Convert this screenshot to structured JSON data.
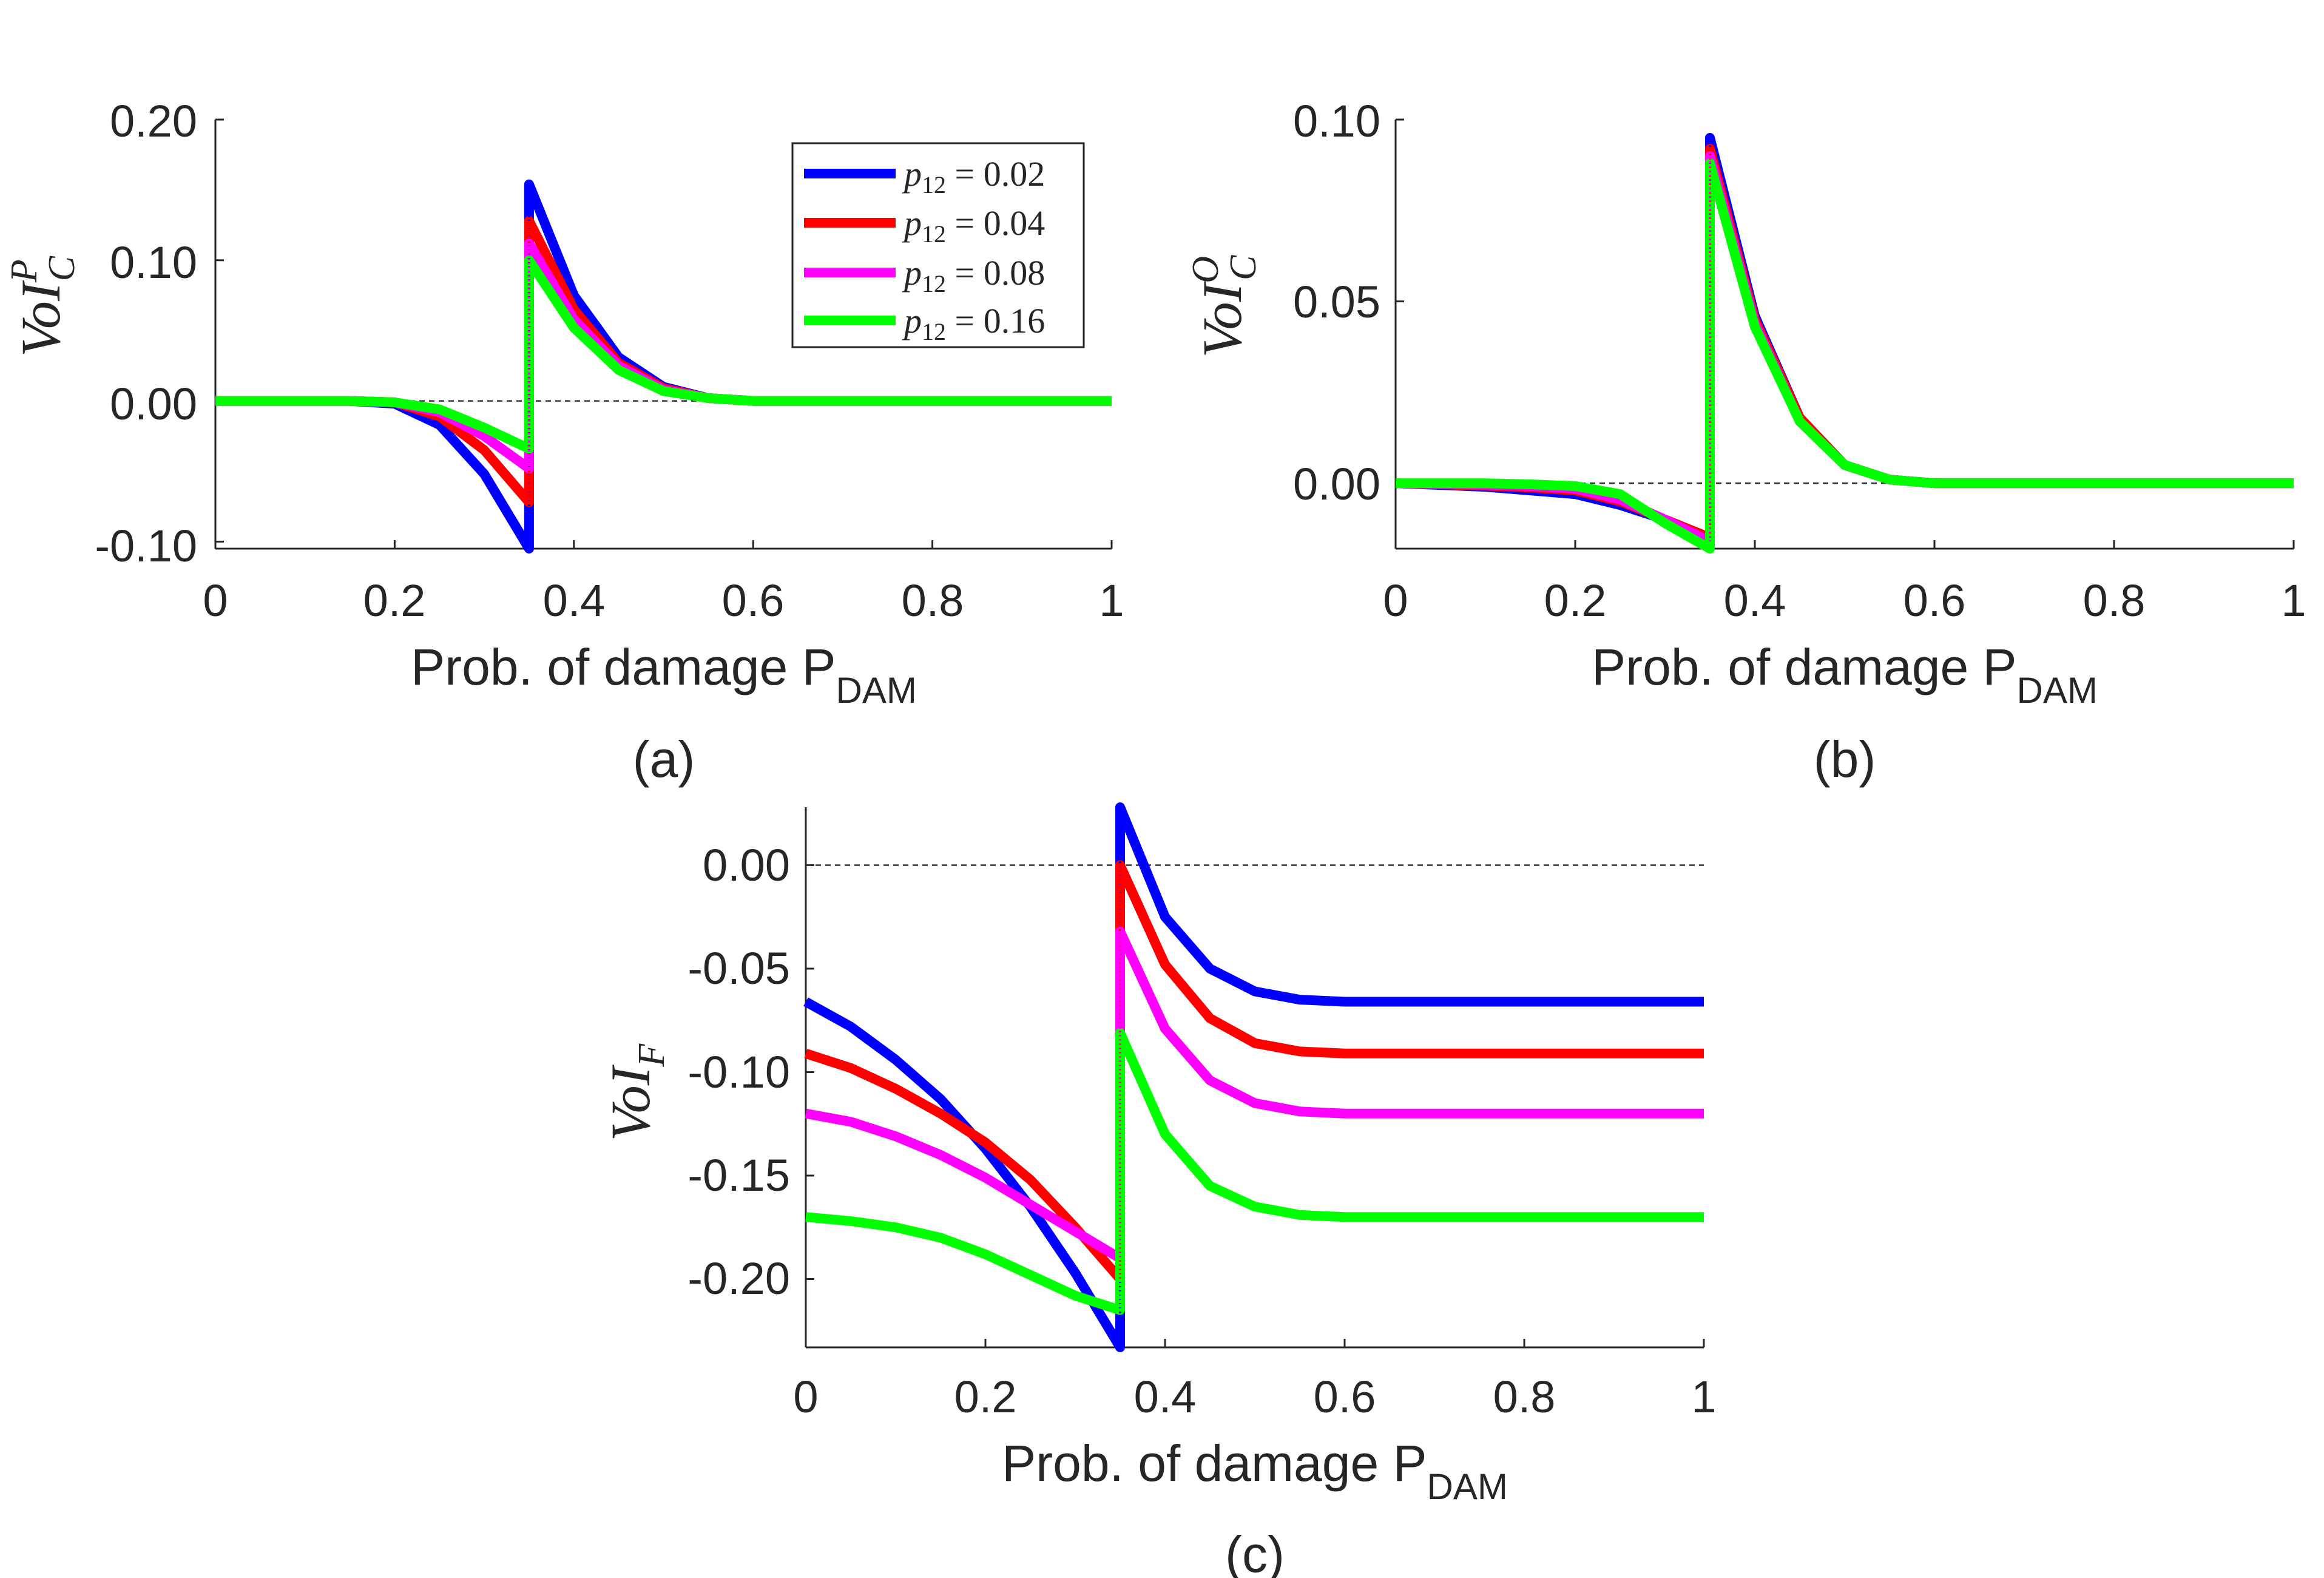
{
  "chart_data": [
    {
      "type": "line",
      "panel_label": "(a)",
      "xlabel": "Prob. of damage P",
      "xlabel_sub": "DAM",
      "ylabel": "VoI",
      "ylabel_sup": "P",
      "ylabel_sub": "C",
      "xlim": [
        0,
        1
      ],
      "ylim": [
        -0.105,
        0.2
      ],
      "x_ticks": [
        "0",
        "0.2",
        "0.4",
        "0.6",
        "0.8",
        "1"
      ],
      "y_ticks": [
        "-0.10",
        "0.00",
        "0.10",
        "0.20"
      ],
      "y_tick_values": [
        -0.1,
        0.0,
        0.1,
        0.2
      ],
      "threshold_x": 0.35,
      "baseline_y": 0,
      "legend": {
        "placement": "top-right",
        "entries": [
          {
            "var": "p",
            "sub": "12",
            "text": " = 0.02"
          },
          {
            "var": "p",
            "sub": "12",
            "text": " = 0.04"
          },
          {
            "var": "p",
            "sub": "12",
            "text": " = 0.08"
          },
          {
            "var": "p",
            "sub": "12",
            "text": " = 0.16"
          }
        ]
      },
      "series": [
        {
          "name": "p12 = 0.02",
          "color": "#0000ff",
          "x": [
            0,
            0.05,
            0.1,
            0.15,
            0.2,
            0.25,
            0.3,
            0.35,
            0.35,
            0.4,
            0.45,
            0.5,
            0.55,
            0.6,
            0.7,
            0.8,
            0.9,
            1.0
          ],
          "y": [
            0,
            0,
            0,
            0,
            -0.002,
            -0.017,
            -0.052,
            -0.105,
            0.154,
            0.075,
            0.031,
            0.01,
            0.002,
            0,
            0,
            0,
            0,
            0
          ]
        },
        {
          "name": "p12 = 0.04",
          "color": "#ff0000",
          "x": [
            0,
            0.05,
            0.1,
            0.15,
            0.2,
            0.25,
            0.3,
            0.35,
            0.35,
            0.4,
            0.45,
            0.5,
            0.55,
            0.6,
            0.7,
            0.8,
            0.9,
            1.0
          ],
          "y": [
            0,
            0,
            0,
            0,
            -0.001,
            -0.011,
            -0.035,
            -0.072,
            0.128,
            0.065,
            0.027,
            0.009,
            0.002,
            0,
            0,
            0,
            0,
            0
          ]
        },
        {
          "name": "p12 = 0.08",
          "color": "#ff00ff",
          "x": [
            0,
            0.05,
            0.1,
            0.15,
            0.2,
            0.25,
            0.3,
            0.35,
            0.35,
            0.4,
            0.45,
            0.5,
            0.55,
            0.6,
            0.7,
            0.8,
            0.9,
            1.0
          ],
          "y": [
            0,
            0,
            0,
            0,
            -0.001,
            -0.008,
            -0.025,
            -0.048,
            0.112,
            0.058,
            0.025,
            0.008,
            0.002,
            0,
            0,
            0,
            0,
            0
          ]
        },
        {
          "name": "p12 = 0.16",
          "color": "#00ff00",
          "x": [
            0,
            0.05,
            0.1,
            0.15,
            0.2,
            0.25,
            0.3,
            0.35,
            0.35,
            0.4,
            0.45,
            0.5,
            0.55,
            0.6,
            0.7,
            0.8,
            0.9,
            1.0
          ],
          "y": [
            0,
            0,
            0,
            0,
            -0.001,
            -0.006,
            -0.019,
            -0.034,
            0.1,
            0.052,
            0.022,
            0.007,
            0.002,
            0,
            0,
            0,
            0,
            0
          ]
        }
      ]
    },
    {
      "type": "line",
      "panel_label": "(b)",
      "xlabel": "Prob. of damage P",
      "xlabel_sub": "DAM",
      "ylabel": "VoI",
      "ylabel_sup": "O",
      "ylabel_sub": "C",
      "xlim": [
        0,
        1
      ],
      "ylim": [
        -0.018,
        0.1
      ],
      "x_ticks": [
        "0",
        "0.2",
        "0.4",
        "0.6",
        "0.8",
        "1"
      ],
      "y_ticks": [
        "0.00",
        "0.05",
        "0.10"
      ],
      "y_tick_values": [
        0.0,
        0.05,
        0.1
      ],
      "threshold_x": 0.35,
      "baseline_y": 0,
      "series": [
        {
          "name": "p12 = 0.02",
          "color": "#0000ff",
          "x": [
            0,
            0.05,
            0.1,
            0.15,
            0.2,
            0.25,
            0.3,
            0.35,
            0.35,
            0.4,
            0.45,
            0.5,
            0.55,
            0.6,
            0.7,
            0.8,
            0.9,
            1.0
          ],
          "y": [
            0,
            -0.0005,
            -0.001,
            -0.002,
            -0.003,
            -0.006,
            -0.01,
            -0.015,
            0.095,
            0.046,
            0.018,
            0.005,
            0.001,
            0,
            0,
            0,
            0,
            0
          ]
        },
        {
          "name": "p12 = 0.04",
          "color": "#ff0000",
          "x": [
            0,
            0.05,
            0.1,
            0.15,
            0.2,
            0.25,
            0.3,
            0.35,
            0.35,
            0.4,
            0.45,
            0.5,
            0.55,
            0.6,
            0.7,
            0.8,
            0.9,
            1.0
          ],
          "y": [
            0,
            -0.0003,
            -0.0007,
            -0.0012,
            -0.002,
            -0.005,
            -0.01,
            -0.015,
            0.092,
            0.045,
            0.018,
            0.005,
            0.001,
            0,
            0,
            0,
            0,
            0
          ]
        },
        {
          "name": "p12 = 0.08",
          "color": "#ff00ff",
          "x": [
            0,
            0.05,
            0.1,
            0.15,
            0.2,
            0.25,
            0.3,
            0.35,
            0.35,
            0.4,
            0.45,
            0.5,
            0.55,
            0.6,
            0.7,
            0.8,
            0.9,
            1.0
          ],
          "y": [
            0,
            -0.0002,
            -0.0004,
            -0.0008,
            -0.0015,
            -0.0045,
            -0.01,
            -0.016,
            0.09,
            0.044,
            0.017,
            0.005,
            0.001,
            0,
            0,
            0,
            0,
            0
          ]
        },
        {
          "name": "p12 = 0.16",
          "color": "#00ff00",
          "x": [
            0,
            0.05,
            0.1,
            0.15,
            0.2,
            0.25,
            0.3,
            0.35,
            0.35,
            0.4,
            0.45,
            0.5,
            0.55,
            0.6,
            0.7,
            0.8,
            0.9,
            1.0
          ],
          "y": [
            0,
            0,
            0,
            -0.0003,
            -0.0008,
            -0.003,
            -0.011,
            -0.018,
            0.088,
            0.043,
            0.017,
            0.005,
            0.001,
            0,
            0,
            0,
            0,
            0
          ]
        }
      ]
    },
    {
      "type": "line",
      "panel_label": "(c)",
      "xlabel": "Prob. of damage P",
      "xlabel_sub": "DAM",
      "ylabel": "VoI",
      "ylabel_sup": "",
      "ylabel_sub": "F",
      "xlim": [
        0,
        1
      ],
      "ylim": [
        -0.233,
        0.028
      ],
      "x_ticks": [
        "0",
        "0.2",
        "0.4",
        "0.6",
        "0.8",
        "1"
      ],
      "y_ticks": [
        "-0.20",
        "-0.15",
        "-0.10",
        "-0.05",
        "0.00"
      ],
      "y_tick_values": [
        -0.2,
        -0.15,
        -0.1,
        -0.05,
        0.0
      ],
      "threshold_x": 0.35,
      "baseline_y": 0,
      "series": [
        {
          "name": "p12 = 0.02",
          "color": "#0000ff",
          "x": [
            0,
            0.05,
            0.1,
            0.15,
            0.2,
            0.25,
            0.3,
            0.35,
            0.35,
            0.4,
            0.45,
            0.5,
            0.55,
            0.6,
            0.7,
            0.8,
            0.9,
            1.0
          ],
          "y": [
            -0.066,
            -0.078,
            -0.094,
            -0.113,
            -0.137,
            -0.165,
            -0.197,
            -0.233,
            0.028,
            -0.025,
            -0.05,
            -0.061,
            -0.065,
            -0.066,
            -0.066,
            -0.066,
            -0.066,
            -0.066
          ]
        },
        {
          "name": "p12 = 0.04",
          "color": "#ff0000",
          "x": [
            0,
            0.05,
            0.1,
            0.15,
            0.2,
            0.25,
            0.3,
            0.35,
            0.35,
            0.4,
            0.45,
            0.5,
            0.55,
            0.6,
            0.7,
            0.8,
            0.9,
            1.0
          ],
          "y": [
            -0.091,
            -0.098,
            -0.108,
            -0.12,
            -0.134,
            -0.152,
            -0.175,
            -0.2,
            0.0,
            -0.048,
            -0.074,
            -0.086,
            -0.09,
            -0.091,
            -0.091,
            -0.091,
            -0.091,
            -0.091
          ]
        },
        {
          "name": "p12 = 0.08",
          "color": "#ff00ff",
          "x": [
            0,
            0.05,
            0.1,
            0.15,
            0.2,
            0.25,
            0.3,
            0.35,
            0.35,
            0.4,
            0.45,
            0.5,
            0.55,
            0.6,
            0.7,
            0.8,
            0.9,
            1.0
          ],
          "y": [
            -0.12,
            -0.124,
            -0.131,
            -0.14,
            -0.151,
            -0.164,
            -0.177,
            -0.19,
            -0.032,
            -0.079,
            -0.104,
            -0.115,
            -0.119,
            -0.12,
            -0.12,
            -0.12,
            -0.12,
            -0.12
          ]
        },
        {
          "name": "p12 = 0.16",
          "color": "#00ff00",
          "x": [
            0,
            0.05,
            0.1,
            0.15,
            0.2,
            0.25,
            0.3,
            0.35,
            0.35,
            0.4,
            0.45,
            0.5,
            0.55,
            0.6,
            0.7,
            0.8,
            0.9,
            1.0
          ],
          "y": [
            -0.17,
            -0.172,
            -0.175,
            -0.18,
            -0.188,
            -0.198,
            -0.208,
            -0.215,
            -0.081,
            -0.13,
            -0.155,
            -0.165,
            -0.169,
            -0.17,
            -0.17,
            -0.17,
            -0.17,
            -0.17
          ]
        }
      ]
    }
  ]
}
